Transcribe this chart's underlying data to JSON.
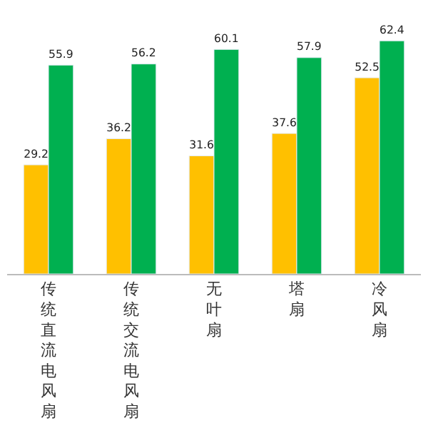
{
  "chart_data": {
    "type": "bar",
    "categories": [
      "传统直流电风扇",
      "传统交流电风扇",
      "无叶扇",
      "塔扇",
      "冷风扇"
    ],
    "series": [
      {
        "color": "#ffc000",
        "values": [
          29.2,
          36.2,
          31.6,
          37.6,
          52.5
        ]
      },
      {
        "color": "#00b050",
        "values": [
          55.9,
          56.2,
          60.1,
          57.9,
          62.4
        ]
      }
    ],
    "data_labels": true,
    "legend": false
  }
}
